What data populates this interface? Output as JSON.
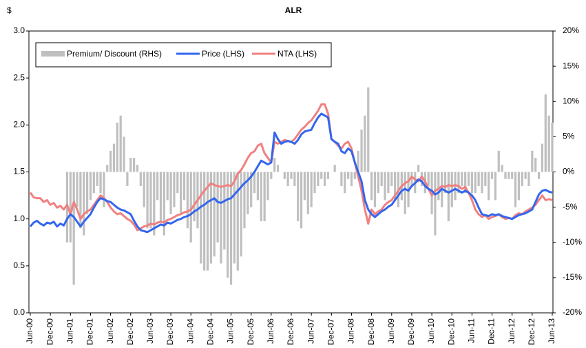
{
  "chart_data": {
    "type": "bar-line",
    "title": "ALR",
    "ylabel": "$",
    "categories": [
      "Jun-00",
      null,
      null,
      null,
      null,
      null,
      "Dec-00",
      null,
      null,
      null,
      null,
      null,
      "Jun-01",
      null,
      null,
      null,
      null,
      null,
      "Dec-01",
      null,
      null,
      null,
      null,
      null,
      "Jun-02",
      null,
      null,
      null,
      null,
      null,
      "Dec-02",
      null,
      null,
      null,
      null,
      null,
      "Jun-03",
      null,
      null,
      null,
      null,
      null,
      "Dec-03",
      null,
      null,
      null,
      null,
      null,
      "Jun-04",
      null,
      null,
      null,
      null,
      null,
      "Dec-04",
      null,
      null,
      null,
      null,
      null,
      "Jun-05",
      null,
      null,
      null,
      null,
      null,
      "Dec-05",
      null,
      null,
      null,
      null,
      null,
      "Jun-06",
      null,
      null,
      null,
      null,
      null,
      "Dec-06",
      null,
      null,
      null,
      null,
      null,
      "Jun-07",
      null,
      null,
      null,
      null,
      null,
      "Dec-07",
      null,
      null,
      null,
      null,
      null,
      "Jun-08",
      null,
      null,
      null,
      null,
      null,
      "Dec-08",
      null,
      null,
      null,
      null,
      null,
      "Jun-09",
      null,
      null,
      null,
      null,
      null,
      "Dec-09",
      null,
      null,
      null,
      null,
      null,
      "Jun-10",
      null,
      null,
      null,
      null,
      null,
      "Dec-10",
      null,
      null,
      null,
      null,
      null,
      "Jun-11",
      null,
      null,
      null,
      null,
      null,
      "Dec-11",
      null,
      null,
      null,
      null,
      null,
      "Jun-12",
      null,
      null,
      null,
      null,
      null,
      "Dec-12",
      null,
      null,
      null,
      null,
      null,
      "Jun-13"
    ],
    "series": [
      {
        "name": "Premium/ Discount (RHS)",
        "type": "bar",
        "axis": "y2",
        "color": "#bfbfbf",
        "values": [
          null,
          null,
          null,
          null,
          null,
          null,
          null,
          null,
          null,
          null,
          null,
          -10,
          -10,
          -16,
          -5,
          -8,
          -9,
          -6,
          -4,
          -3,
          -2,
          -3,
          -5,
          1,
          3,
          4,
          7,
          8,
          5,
          -2,
          2,
          2,
          1,
          -2,
          -5,
          -8,
          -8,
          -9,
          -4,
          -7,
          -9,
          -4,
          -6,
          -5,
          -3,
          -6,
          -4,
          -8,
          -10,
          -7,
          -8,
          -13,
          -14,
          -14,
          -13,
          -12,
          -10,
          -13,
          -11,
          -15,
          -16,
          -13,
          -14,
          -12,
          -8,
          -6,
          -5,
          -3,
          -4,
          -7,
          -7,
          -4,
          -1,
          2,
          1,
          0,
          -1,
          -2,
          -1,
          -2,
          -7,
          -8,
          -4,
          -6,
          -5,
          -3,
          -2,
          -1,
          -2,
          -1,
          0,
          1,
          0,
          -2,
          -3,
          -1,
          -2,
          -1,
          3,
          6,
          8,
          12,
          -4,
          -5,
          -3,
          -2,
          -4,
          -3,
          -2,
          -4,
          -5,
          -4,
          -6,
          -5,
          -2,
          -3,
          1,
          -2,
          -3,
          -2,
          -6,
          -9,
          -4,
          -5,
          -3,
          -7,
          -5,
          -4,
          -3,
          -2,
          -3,
          -2,
          -3,
          -3,
          -2,
          -3,
          -2,
          -4,
          -1,
          -4,
          3,
          1,
          -1,
          -1,
          -1,
          -5,
          -4,
          -2,
          -1,
          -2,
          3,
          2,
          -1,
          4,
          11,
          8,
          7
        ]
      },
      {
        "name": "Price (LHS)",
        "type": "line",
        "color": "#3366ee",
        "values": [
          0.92,
          0.96,
          0.98,
          0.95,
          0.93,
          0.96,
          0.95,
          0.97,
          0.92,
          0.95,
          0.93,
          1.0,
          1.05,
          1.02,
          0.97,
          0.92,
          0.97,
          1.01,
          1.05,
          1.12,
          1.18,
          1.22,
          1.21,
          1.19,
          1.18,
          1.15,
          1.12,
          1.1,
          1.09,
          1.07,
          1.05,
          0.98,
          0.92,
          0.88,
          0.87,
          0.86,
          0.88,
          0.9,
          0.92,
          0.94,
          0.93,
          0.96,
          0.95,
          0.97,
          0.99,
          1.0,
          1.02,
          1.03,
          1.05,
          1.08,
          1.1,
          1.13,
          1.15,
          1.18,
          1.2,
          1.22,
          1.18,
          1.17,
          1.19,
          1.21,
          1.22,
          1.26,
          1.3,
          1.34,
          1.38,
          1.41,
          1.45,
          1.5,
          1.56,
          1.62,
          1.6,
          1.58,
          1.6,
          1.92,
          1.85,
          1.8,
          1.82,
          1.83,
          1.82,
          1.8,
          1.84,
          1.9,
          1.93,
          1.94,
          1.95,
          2.02,
          2.08,
          2.12,
          2.1,
          2.08,
          1.85,
          1.82,
          1.8,
          1.72,
          1.7,
          1.75,
          1.72,
          1.6,
          1.5,
          1.4,
          1.2,
          1.1,
          1.05,
          1.02,
          1.05,
          1.08,
          1.1,
          1.13,
          1.15,
          1.2,
          1.25,
          1.3,
          1.32,
          1.3,
          1.35,
          1.38,
          1.42,
          1.4,
          1.35,
          1.32,
          1.3,
          1.26,
          1.28,
          1.32,
          1.3,
          1.28,
          1.3,
          1.32,
          1.3,
          1.28,
          1.3,
          1.28,
          1.25,
          1.2,
          1.12,
          1.05,
          1.04,
          1.03,
          1.05,
          1.04,
          1.05,
          1.03,
          1.02,
          1.01,
          1.0,
          1.02,
          1.04,
          1.05,
          1.06,
          1.08,
          1.1,
          1.18,
          1.26,
          1.3,
          1.31,
          1.29,
          1.28
        ]
      },
      {
        "name": "NTA (LHS)",
        "type": "line",
        "color": "#f08080",
        "values": [
          1.28,
          1.23,
          1.22,
          1.22,
          1.18,
          1.2,
          1.15,
          1.17,
          1.12,
          1.14,
          1.1,
          1.15,
          1.05,
          1.18,
          1.1,
          1.0,
          1.05,
          1.08,
          1.1,
          1.15,
          1.2,
          1.25,
          1.22,
          1.18,
          1.12,
          1.08,
          1.05,
          1.06,
          1.03,
          1.0,
          0.98,
          0.94,
          0.88,
          0.9,
          0.92,
          0.93,
          0.95,
          0.94,
          0.96,
          0.97,
          0.96,
          0.99,
          1.0,
          1.02,
          1.04,
          1.05,
          1.07,
          1.08,
          1.1,
          1.15,
          1.2,
          1.25,
          1.3,
          1.34,
          1.38,
          1.36,
          1.35,
          1.34,
          1.35,
          1.36,
          1.35,
          1.4,
          1.48,
          1.52,
          1.58,
          1.65,
          1.7,
          1.72,
          1.78,
          1.8,
          1.7,
          1.65,
          1.6,
          1.82,
          1.8,
          1.82,
          1.84,
          1.83,
          1.82,
          1.85,
          1.9,
          1.95,
          1.98,
          2.02,
          2.05,
          2.1,
          2.15,
          2.22,
          2.22,
          2.12,
          1.85,
          1.82,
          1.78,
          1.75,
          1.8,
          1.82,
          1.75,
          1.6,
          1.45,
          1.3,
          1.1,
          0.95,
          1.1,
          1.05,
          1.08,
          1.1,
          1.15,
          1.18,
          1.2,
          1.25,
          1.3,
          1.35,
          1.38,
          1.4,
          1.45,
          1.42,
          1.4,
          1.45,
          1.4,
          1.32,
          1.25,
          1.3,
          1.32,
          1.35,
          1.34,
          1.36,
          1.35,
          1.36,
          1.35,
          1.32,
          1.34,
          1.28,
          1.2,
          1.1,
          1.05,
          1.02,
          1.04,
          1.0,
          1.02,
          1.03,
          1.05,
          1.02,
          1.0,
          1.01,
          1.0,
          1.04,
          1.06,
          1.05,
          1.08,
          1.1,
          1.12,
          1.15,
          1.2,
          1.25,
          1.2,
          1.21,
          1.2
        ]
      }
    ],
    "ylim": [
      0,
      3.0
    ],
    "yticks": [
      {
        "value": 0,
        "label": "0.0"
      },
      {
        "value": 0.5,
        "label": "0.5"
      },
      {
        "value": 1,
        "label": "1.0"
      },
      {
        "value": 1.5,
        "label": "1.5"
      },
      {
        "value": 2,
        "label": "2.0"
      },
      {
        "value": 2.5,
        "label": "2.5"
      },
      {
        "value": 3,
        "label": "3.0"
      }
    ],
    "y2lim": [
      -20,
      20
    ],
    "y2ticks": [
      {
        "value": -20,
        "label": "-20%"
      },
      {
        "value": -15,
        "label": "-15%"
      },
      {
        "value": -10,
        "label": "-10%"
      },
      {
        "value": -5,
        "label": "-5%"
      },
      {
        "value": 0,
        "label": "0%"
      },
      {
        "value": 5,
        "label": "5%"
      },
      {
        "value": 10,
        "label": "10%"
      },
      {
        "value": 15,
        "label": "15%"
      },
      {
        "value": 20,
        "label": "20%"
      }
    ],
    "legend": "top-left",
    "grid": false
  }
}
